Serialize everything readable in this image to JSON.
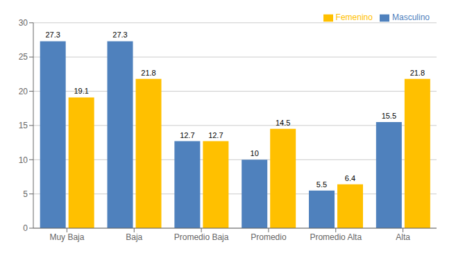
{
  "chart_data": {
    "type": "bar",
    "categories": [
      "Muy Baja",
      "Baja",
      "Promedio Baja",
      "Promedio",
      "Promedio Alta",
      "Alta"
    ],
    "series": [
      {
        "name": "Masculino",
        "color": "#4f81bd",
        "values": [
          27.3,
          27.3,
          12.7,
          10,
          5.5,
          15.5
        ]
      },
      {
        "name": "Femenino",
        "color": "#ffc000",
        "values": [
          19.1,
          21.8,
          12.7,
          14.5,
          6.4,
          21.8
        ]
      }
    ],
    "ylim": [
      0,
      30
    ],
    "yticks": [
      0,
      5,
      10,
      15,
      20,
      25,
      30
    ],
    "grid": true,
    "legend": "upper right",
    "data_labels": true
  }
}
